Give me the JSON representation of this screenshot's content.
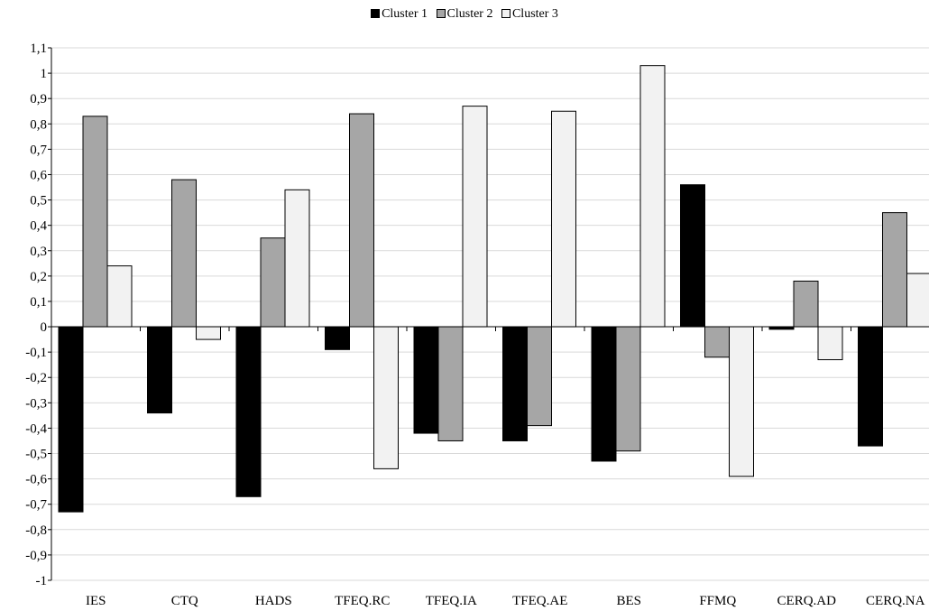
{
  "chart_data": {
    "type": "bar",
    "title": "",
    "xlabel": "",
    "ylabel": "",
    "categories": [
      "IES",
      "CTQ",
      "HADS",
      "TFEQ.RC",
      "TFEQ.IA",
      "TFEQ.AE",
      "BES",
      "FFMQ",
      "CERQ.AD",
      "CERQ.NA"
    ],
    "series": [
      {
        "name": "Cluster 1",
        "color": "#000000",
        "values": [
          -0.73,
          -0.34,
          -0.67,
          -0.09,
          -0.42,
          -0.45,
          -0.53,
          0.56,
          -0.01,
          -0.47
        ]
      },
      {
        "name": "Cluster 2",
        "color": "#a6a6a6",
        "values": [
          0.83,
          0.58,
          0.35,
          0.84,
          -0.45,
          -0.39,
          -0.49,
          -0.12,
          0.18,
          0.45
        ]
      },
      {
        "name": "Cluster 3",
        "color": "#f2f2f2",
        "values": [
          0.24,
          -0.05,
          0.54,
          -0.56,
          0.87,
          0.85,
          1.03,
          -0.59,
          -0.13,
          0.21
        ]
      }
    ],
    "ylim": [
      -1,
      1.1
    ],
    "yticks": [
      "-1",
      "-0,9",
      "-0,8",
      "-0,7",
      "-0,6",
      "-0,5",
      "-0,4",
      "-0,3",
      "-0,2",
      "-0,1",
      "0",
      "0,1",
      "0,2",
      "0,3",
      "0,4",
      "0,5",
      "0,6",
      "0,7",
      "0,8",
      "0,9",
      "1",
      "1,1"
    ],
    "grid": true,
    "legend_position": "top-center"
  }
}
